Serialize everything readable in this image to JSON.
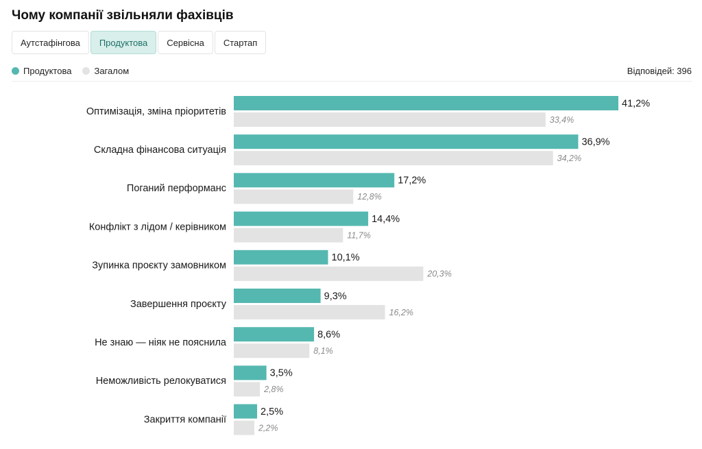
{
  "title": "Чому компанії звільняли фахівців",
  "tabs": [
    {
      "label": "Аутстафінгова",
      "active": false
    },
    {
      "label": "Продуктова",
      "active": true
    },
    {
      "label": "Сервісна",
      "active": false
    },
    {
      "label": "Стартап",
      "active": false
    }
  ],
  "legend": {
    "primary_label": "Продуктова",
    "secondary_label": "Загалом"
  },
  "responses": "Відповідей: 396",
  "colors": {
    "primary": "#55b8b0",
    "secondary": "#e3e3e3"
  },
  "chart_data": {
    "type": "bar",
    "orientation": "horizontal",
    "categories": [
      "Оптимізація, зміна пріоритетів",
      "Складна фінансова ситуація",
      "Поганий перформанс",
      "Конфлікт з лідом / керівником",
      "Зупинка проєкту замовником",
      "Завершення проєкту",
      "Не знаю — ніяк не пояснила",
      "Неможливість релокуватися",
      "Закриття компанії"
    ],
    "series": [
      {
        "name": "Продуктова",
        "values": [
          41.2,
          36.9,
          17.2,
          14.4,
          10.1,
          9.3,
          8.6,
          3.5,
          2.5
        ],
        "labels": [
          "41,2%",
          "36,9%",
          "17,2%",
          "14,4%",
          "10,1%",
          "9,3%",
          "8,6%",
          "3,5%",
          "2,5%"
        ]
      },
      {
        "name": "Загалом",
        "values": [
          33.4,
          34.2,
          12.8,
          11.7,
          20.3,
          16.2,
          8.1,
          2.8,
          2.2
        ],
        "labels": [
          "33,4%",
          "34,2%",
          "12,8%",
          "11,7%",
          "20,3%",
          "16,2%",
          "8,1%",
          "2,8%",
          "2,2%"
        ]
      }
    ],
    "xlim": [
      0,
      41.2
    ],
    "legend_position": "top-left",
    "grid": false
  }
}
